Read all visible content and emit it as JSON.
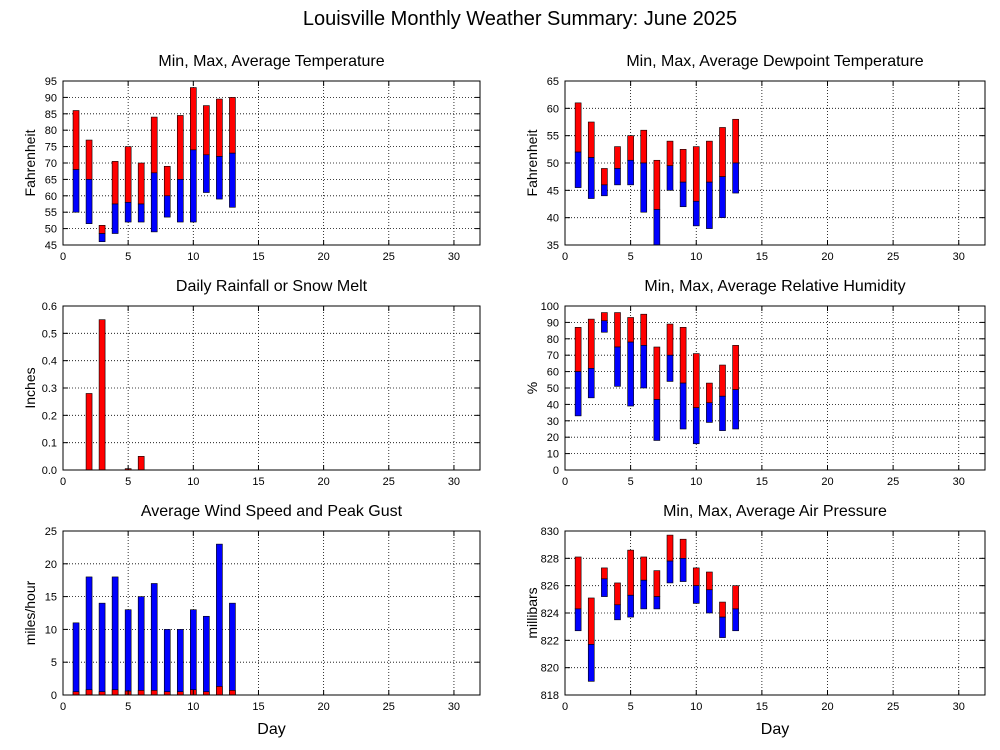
{
  "figure_title": "Louisville Monthly Weather Summary: June 2025",
  "colors": {
    "max_bar": "#ff0000",
    "min_bar": "#0000ff",
    "grid": "#000000"
  },
  "chart_data": [
    {
      "type": "bar",
      "title": "Min, Max, Average Temperature",
      "xlabel": "",
      "ylabel": "Fahrenheit",
      "xlim": [
        0,
        32
      ],
      "xticks": [
        0,
        5,
        10,
        15,
        20,
        25,
        30
      ],
      "ylim": [
        45,
        95
      ],
      "yticks": [
        45,
        50,
        55,
        60,
        65,
        70,
        75,
        80,
        85,
        90,
        95
      ],
      "grid": true,
      "style": "floating",
      "days": [
        1,
        2,
        3,
        4,
        5,
        6,
        7,
        8,
        9,
        10,
        11,
        12,
        13
      ],
      "min": [
        55,
        51.5,
        46,
        48.5,
        52,
        52,
        49,
        53.5,
        52,
        52,
        61,
        59,
        56.5
      ],
      "avg": [
        68,
        65,
        48.5,
        57.5,
        58,
        57.5,
        67,
        60,
        65,
        74,
        72.5,
        72,
        73
      ],
      "max": [
        86,
        77,
        51,
        70.5,
        75,
        70,
        84,
        69,
        84.5,
        93,
        87.5,
        89.5,
        90
      ]
    },
    {
      "type": "bar",
      "title": "Min, Max, Average Dewpoint Temperature",
      "xlabel": "",
      "ylabel": "Fahrenheit",
      "xlim": [
        0,
        32
      ],
      "xticks": [
        0,
        5,
        10,
        15,
        20,
        25,
        30
      ],
      "ylim": [
        35,
        65
      ],
      "yticks": [
        35,
        40,
        45,
        50,
        55,
        60,
        65
      ],
      "grid": true,
      "style": "floating",
      "days": [
        1,
        2,
        3,
        4,
        5,
        6,
        7,
        8,
        9,
        10,
        11,
        12,
        13
      ],
      "min": [
        45.5,
        43.5,
        44,
        46,
        46,
        41,
        35,
        45,
        42,
        38.5,
        38,
        40,
        44.5
      ],
      "avg": [
        52,
        51,
        46,
        49,
        50.5,
        50,
        41.5,
        49.5,
        46.5,
        43,
        46.5,
        47.5,
        50
      ],
      "max": [
        61,
        57.5,
        49,
        53,
        55,
        56,
        50.5,
        54,
        52.5,
        53,
        54,
        56.5,
        58
      ]
    },
    {
      "type": "bar",
      "title": "Daily Rainfall or Snow Melt",
      "xlabel": "",
      "ylabel": "Inches",
      "xlim": [
        0,
        32
      ],
      "xticks": [
        0,
        5,
        10,
        15,
        20,
        25,
        30
      ],
      "ylim": [
        0,
        0.6
      ],
      "yticks": [
        0.0,
        0.1,
        0.2,
        0.3,
        0.4,
        0.5,
        0.6
      ],
      "ytick_labels": [
        "0.0",
        "0.1",
        "0.2",
        "0.3",
        "0.4",
        "0.5",
        "0.6"
      ],
      "grid": true,
      "style": "simple",
      "days": [
        2,
        3,
        5,
        6
      ],
      "values": [
        0.28,
        0.55,
        0.005,
        0.05
      ]
    },
    {
      "type": "bar",
      "title": "Min, Max, Average Relative Humidity",
      "xlabel": "",
      "ylabel": "%",
      "xlim": [
        0,
        32
      ],
      "xticks": [
        0,
        5,
        10,
        15,
        20,
        25,
        30
      ],
      "ylim": [
        0,
        100
      ],
      "yticks": [
        0,
        10,
        20,
        30,
        40,
        50,
        60,
        70,
        80,
        90,
        100
      ],
      "grid": true,
      "style": "floating",
      "days": [
        1,
        2,
        3,
        4,
        5,
        6,
        7,
        8,
        9,
        10,
        11,
        12,
        13
      ],
      "min": [
        33,
        44,
        84,
        51,
        39,
        50,
        18,
        54,
        25,
        16,
        29,
        24,
        25
      ],
      "avg": [
        60,
        62,
        91,
        75,
        78,
        76,
        43,
        70,
        53,
        38,
        41,
        45,
        49
      ],
      "max": [
        87,
        92,
        96,
        96,
        93,
        95,
        75,
        89,
        87,
        71,
        53,
        64,
        76
      ]
    },
    {
      "type": "bar",
      "title": "Average Wind Speed and Peak Gust",
      "xlabel": "Day",
      "ylabel": "miles/hour",
      "xlim": [
        0,
        32
      ],
      "xticks": [
        0,
        5,
        10,
        15,
        20,
        25,
        30
      ],
      "ylim": [
        0,
        25
      ],
      "yticks": [
        0,
        5,
        10,
        15,
        20,
        25
      ],
      "grid": true,
      "style": "wind",
      "days": [
        1,
        2,
        3,
        4,
        5,
        6,
        7,
        8,
        9,
        10,
        11,
        12,
        13
      ],
      "peak_gust": [
        11,
        18,
        14,
        18,
        13,
        15,
        17,
        10,
        10,
        13,
        12,
        23,
        14
      ],
      "avg_speed": [
        0.5,
        0.8,
        0.5,
        0.8,
        0.6,
        0.7,
        0.7,
        0.5,
        0.5,
        0.8,
        0.5,
        1.3,
        0.7
      ]
    },
    {
      "type": "bar",
      "title": "Min, Max, Average Air Pressure",
      "xlabel": "Day",
      "ylabel": "millibars",
      "xlim": [
        0,
        32
      ],
      "xticks": [
        0,
        5,
        10,
        15,
        20,
        25,
        30
      ],
      "ylim": [
        818,
        830
      ],
      "yticks": [
        818,
        820,
        822,
        824,
        826,
        828,
        830
      ],
      "grid": true,
      "style": "floating",
      "days": [
        1,
        2,
        3,
        4,
        5,
        6,
        7,
        8,
        9,
        10,
        11,
        12,
        13
      ],
      "min": [
        822.7,
        819.0,
        825.2,
        823.5,
        823.7,
        824.3,
        824.3,
        826.2,
        826.3,
        824.7,
        824.0,
        822.2,
        822.7
      ],
      "avg": [
        824.3,
        821.7,
        826.5,
        824.6,
        825.3,
        826.4,
        825.2,
        827.8,
        828.0,
        826.0,
        825.7,
        823.7,
        824.3
      ],
      "max": [
        828.1,
        825.1,
        827.3,
        826.2,
        828.6,
        828.1,
        827.1,
        829.7,
        829.4,
        827.3,
        827.0,
        824.8,
        826.0
      ]
    }
  ]
}
